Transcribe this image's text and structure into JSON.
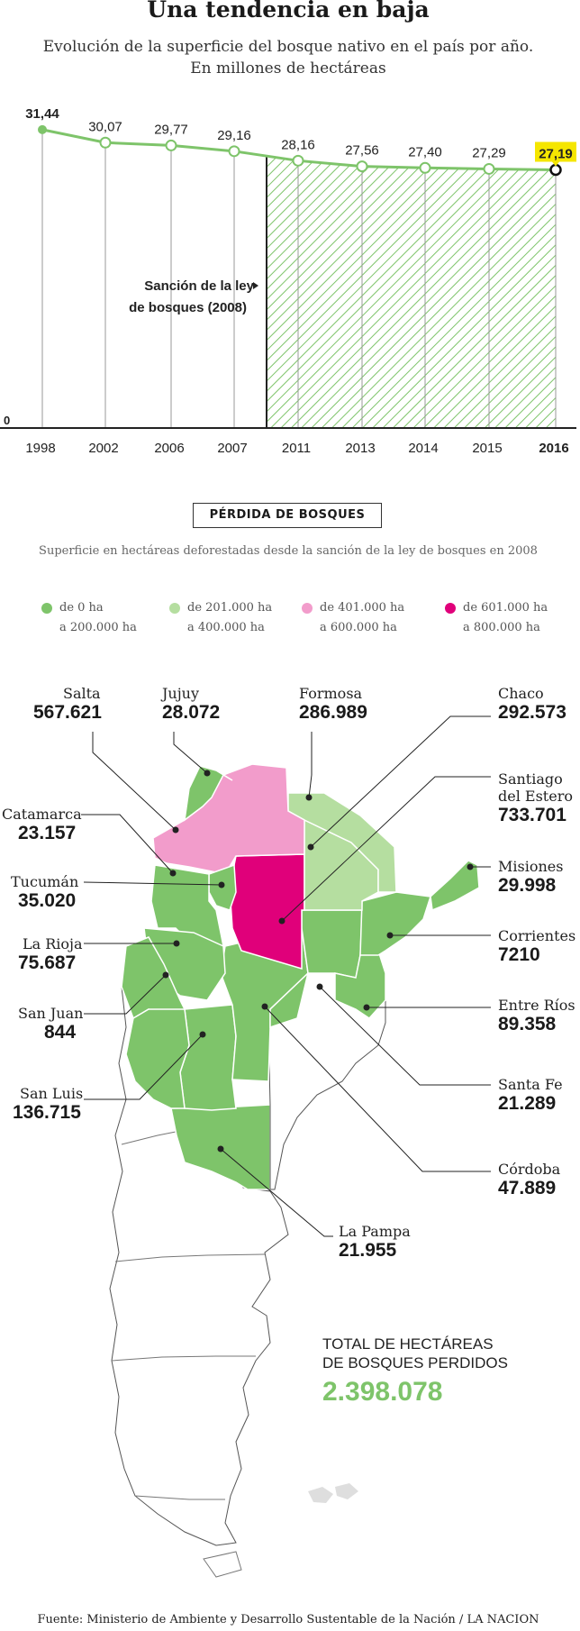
{
  "header": {
    "title": "Una tendencia en baja",
    "subtitle_line1": "Evolución de la superficie del bosque nativo en el país por año.",
    "subtitle_line2": "En millones de hectáreas"
  },
  "chart_data": {
    "type": "line",
    "title": "Una tendencia en baja",
    "subtitle": "Evolución de la superficie del bosque nativo en el país por año. En millones de hectáreas",
    "categories": [
      "1998",
      "2002",
      "2006",
      "2007",
      "2011",
      "2013",
      "2014",
      "2015",
      "2016"
    ],
    "values": [
      31.44,
      30.07,
      29.77,
      29.16,
      28.16,
      27.56,
      27.4,
      27.29,
      27.19
    ],
    "labels": [
      "31,44",
      "30,07",
      "29,77",
      "29,16",
      "28,16",
      "27,56",
      "27,40",
      "27,29",
      "27,19"
    ],
    "y_zero_label": "0",
    "annotation": "Sanción de la ley de bosques (2008)",
    "annotation_line1": "Sanción de la ley",
    "annotation_line2": "de bosques (2008)",
    "highlight_last": true,
    "colors": {
      "line": "#7ec46a",
      "hatch": "#7ec46a",
      "highlight": "#f5e600"
    }
  },
  "map_section": {
    "title": "PÉRDIDA DE BOSQUES",
    "subtitle": "Superficie en hectáreas deforestadas desde la sanción de la ley de bosques en 2008",
    "legend": [
      {
        "line1": "de 0 ha",
        "line2": "a 200.000 ha",
        "color": "#7ec46a"
      },
      {
        "line1": "de 201.000 ha",
        "line2": "a 400.000 ha",
        "color": "#b5dea0"
      },
      {
        "line1": "de 401.000 ha",
        "line2": "a 600.000 ha",
        "color": "#f29ccb"
      },
      {
        "line1": "de 601.000 ha",
        "line2": "a 800.000 ha",
        "color": "#e0007a"
      }
    ],
    "provinces": [
      {
        "name": "Salta",
        "value": "567.621"
      },
      {
        "name": "Jujuy",
        "value": "28.072"
      },
      {
        "name": "Formosa",
        "value": "286.989"
      },
      {
        "name": "Chaco",
        "value": "292.573"
      },
      {
        "name": "Santiago\ndel Estero",
        "value": "733.701"
      },
      {
        "name": "Catamarca",
        "value": "23.157"
      },
      {
        "name": "Tucumán",
        "value": "35.020"
      },
      {
        "name": "Misiones",
        "value": "29.998"
      },
      {
        "name": "La Rioja",
        "value": "75.687"
      },
      {
        "name": "Corrientes",
        "value": "7210"
      },
      {
        "name": "San Juan",
        "value": "844"
      },
      {
        "name": "Entre Ríos",
        "value": "89.358"
      },
      {
        "name": "San Luis",
        "value": "136.715"
      },
      {
        "name": "Santa Fe",
        "value": "21.289"
      },
      {
        "name": "Córdoba",
        "value": "47.889"
      },
      {
        "name": "La Pampa",
        "value": "21.955"
      }
    ],
    "total_label_line1": "TOTAL DE HECTÁREAS",
    "total_label_line2": "DE BOSQUES PERDIDOS",
    "total_value": "2.398.078"
  },
  "source": "Fuente: Ministerio de Ambiente y Desarrollo Sustentable de la Nación / LA NACION"
}
